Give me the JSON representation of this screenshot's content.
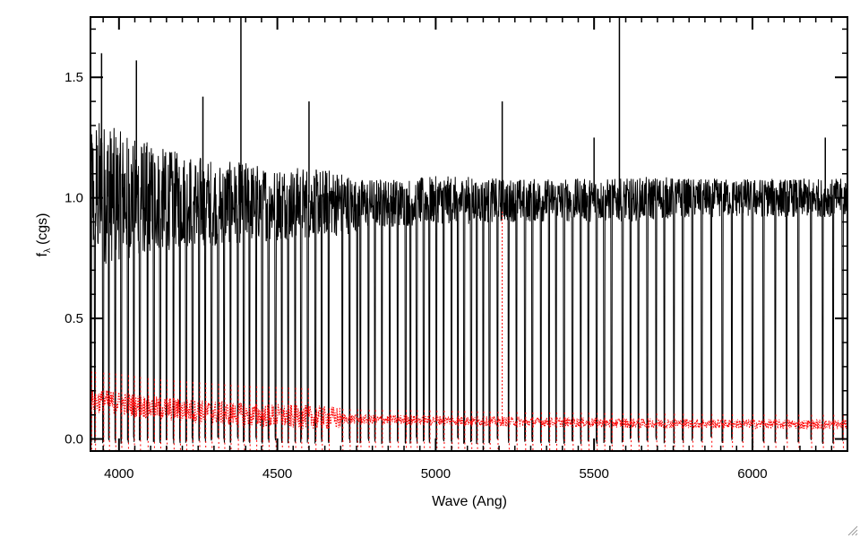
{
  "chart_data": {
    "type": "line",
    "title": "",
    "xlabel": "Wave (Ang)",
    "ylabel": "f",
    "ylabel_sub": "λ",
    "ylabel_unit": "(cgs)",
    "xlim": [
      3910,
      6300
    ],
    "ylim": [
      -0.05,
      1.75
    ],
    "xticks": [
      4000,
      4500,
      5000,
      5500,
      6000
    ],
    "xtick_labels": [
      "4000",
      "4500",
      "5000",
      "5500",
      "6000"
    ],
    "yticks": [
      0.0,
      0.5,
      1.0,
      1.5
    ],
    "ytick_labels": [
      "0.0",
      "0.5",
      "1.0",
      "1.5"
    ],
    "grid": false,
    "legend": "none",
    "series": [
      {
        "style": "solid",
        "color": "#000000",
        "x": [
          3910,
          3950,
          4000,
          4050,
          4100,
          4150,
          4200,
          4250,
          4300,
          4350,
          4400,
          4450,
          4500,
          4550,
          4600,
          4650,
          4700,
          4750,
          4800,
          4900,
          5000,
          5100,
          5200,
          5300,
          5400,
          5500,
          5600,
          5700,
          5800,
          5900,
          6000,
          6100,
          6200,
          6300
        ],
        "y": [
          1.02,
          1.02,
          1.01,
          1.0,
          1.0,
          0.99,
          0.99,
          0.99,
          0.98,
          0.98,
          0.98,
          0.98,
          0.98,
          0.98,
          0.98,
          0.98,
          0.98,
          0.97,
          0.98,
          0.98,
          0.99,
          0.99,
          0.99,
          0.99,
          0.99,
          0.99,
          0.99,
          1.0,
          1.0,
          1.0,
          1.0,
          1.0,
          1.0,
          1.0
        ],
        "noise_halfwidth": [
          0.32,
          0.3,
          0.27,
          0.25,
          0.23,
          0.21,
          0.2,
          0.19,
          0.18,
          0.17,
          0.17,
          0.16,
          0.16,
          0.15,
          0.15,
          0.14,
          0.14,
          0.11,
          0.1,
          0.1,
          0.1,
          0.1,
          0.09,
          0.09,
          0.09,
          0.09,
          0.09,
          0.09,
          0.08,
          0.08,
          0.08,
          0.08,
          0.08,
          0.08
        ],
        "spikes": [
          [
            4385,
            1.75
          ],
          [
            5580,
            1.75
          ],
          [
            3945,
            1.6
          ],
          [
            4055,
            1.57
          ],
          [
            4265,
            1.42
          ],
          [
            4600,
            1.4
          ],
          [
            5210,
            1.4
          ],
          [
            5500,
            1.25
          ],
          [
            6230,
            1.25
          ]
        ],
        "absorption_lines": [
          3912,
          3924,
          3950,
          3968,
          3988,
          4007,
          4028,
          4047,
          4066,
          4090,
          4110,
          4130,
          4150,
          4172,
          4192,
          4212,
          4232,
          4253,
          4272,
          4292,
          4313,
          4332,
          4352,
          4375,
          4394,
          4412,
          4433,
          4452,
          4472,
          4494,
          4514,
          4534,
          4556,
          4575,
          4596,
          4620,
          4640,
          4662,
          4705,
          4728,
          4752,
          4762,
          4788,
          4808,
          4830,
          4855,
          4880,
          4905,
          4920,
          4940,
          4962,
          4980,
          5002,
          5025,
          5050,
          5070,
          5090,
          5112,
          5130,
          5150,
          5170,
          5195,
          5230,
          5255,
          5282,
          5305,
          5332,
          5358,
          5380,
          5405,
          5432,
          5458,
          5482,
          5508,
          5532,
          5555,
          5590,
          5615,
          5640,
          5668,
          5696,
          5722,
          5752,
          5780,
          5810,
          5840,
          5870,
          5905,
          5935,
          5968,
          6000,
          6035,
          6072,
          6108,
          6145,
          6185,
          6222,
          6255,
          6285
        ]
      },
      {
        "style": "dotted",
        "color": "#ff0000",
        "x": [
          3910,
          3950,
          4000,
          4050,
          4100,
          4200,
          4300,
          4400,
          4500,
          4600,
          4700,
          4800,
          4900,
          5000,
          5100,
          5200,
          5300,
          5400,
          5500,
          5600,
          5700,
          5800,
          5900,
          6000,
          6100,
          6200,
          6300
        ],
        "y": [
          0.16,
          0.155,
          0.15,
          0.14,
          0.13,
          0.12,
          0.11,
          0.1,
          0.095,
          0.09,
          0.085,
          0.08,
          0.08,
          0.078,
          0.075,
          0.073,
          0.07,
          0.07,
          0.068,
          0.066,
          0.065,
          0.064,
          0.063,
          0.062,
          0.061,
          0.06,
          0.06
        ],
        "spikes": [
          [
            5210,
            0.95
          ]
        ]
      }
    ]
  }
}
